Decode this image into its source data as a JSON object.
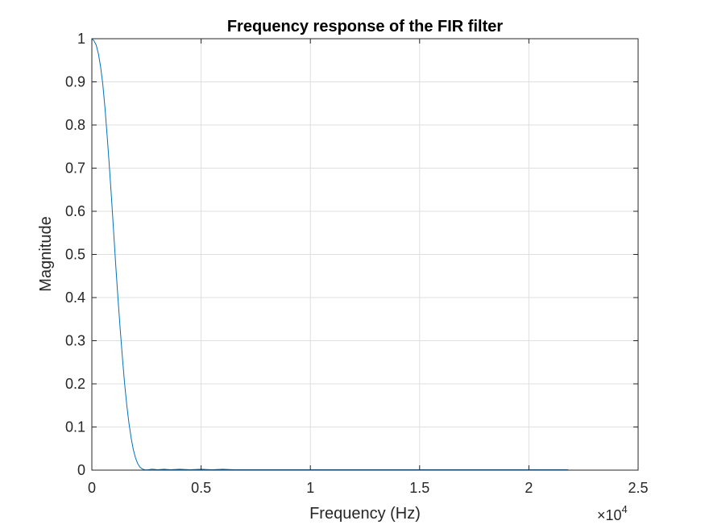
{
  "chart_data": {
    "type": "line",
    "title": "Frequency response of the FIR filter",
    "xlabel": "Frequency (Hz)",
    "ylabel": "Magnitude",
    "xlim": [
      0,
      25000
    ],
    "ylim": [
      0,
      1
    ],
    "x_multiplier_label": "×10",
    "x_multiplier_exponent": "4",
    "xticks": [
      {
        "value": 0,
        "label": "0"
      },
      {
        "value": 5000,
        "label": "0.5"
      },
      {
        "value": 10000,
        "label": "1"
      },
      {
        "value": 15000,
        "label": "1.5"
      },
      {
        "value": 20000,
        "label": "2"
      },
      {
        "value": 25000,
        "label": "2.5"
      }
    ],
    "yticks": [
      {
        "value": 0,
        "label": "0"
      },
      {
        "value": 0.1,
        "label": "0.1"
      },
      {
        "value": 0.2,
        "label": "0.2"
      },
      {
        "value": 0.3,
        "label": "0.3"
      },
      {
        "value": 0.4,
        "label": "0.4"
      },
      {
        "value": 0.5,
        "label": "0.5"
      },
      {
        "value": 0.6,
        "label": "0.6"
      },
      {
        "value": 0.7,
        "label": "0.7"
      },
      {
        "value": 0.8,
        "label": "0.8"
      },
      {
        "value": 0.9,
        "label": "0.9"
      },
      {
        "value": 1,
        "label": "1"
      }
    ],
    "grid": true,
    "series": [
      {
        "color": "#0072bd",
        "x": [
          0,
          100,
          200,
          300,
          400,
          500,
          600,
          700,
          800,
          900,
          1000,
          1100,
          1200,
          1300,
          1400,
          1500,
          1600,
          1700,
          1800,
          1900,
          2000,
          2100,
          2200,
          2300,
          2400,
          2500,
          2600,
          2700,
          2800,
          3000,
          3300,
          3600,
          4000,
          4500,
          5000,
          5500,
          6000,
          6500,
          7000,
          8000,
          9000,
          10000,
          11000,
          12000,
          13000,
          14000,
          15000,
          16000,
          17000,
          18000,
          19000,
          20000,
          21000,
          21800
        ],
        "y": [
          1.0,
          0.995,
          0.985,
          0.965,
          0.935,
          0.895,
          0.84,
          0.775,
          0.705,
          0.63,
          0.55,
          0.47,
          0.395,
          0.325,
          0.26,
          0.2,
          0.15,
          0.108,
          0.074,
          0.047,
          0.028,
          0.015,
          0.007,
          0.003,
          0.001,
          0.0005,
          0.001,
          0.002,
          0.002,
          0.001,
          0.002,
          0.001,
          0.002,
          0.001,
          0.002,
          0.001,
          0.002,
          0.001,
          0.001,
          0.001,
          0.001,
          0.001,
          0.001,
          0.001,
          0.001,
          0.001,
          0.001,
          0.001,
          0.001,
          0.001,
          0.001,
          0.001,
          0.001,
          0.001
        ]
      }
    ]
  }
}
